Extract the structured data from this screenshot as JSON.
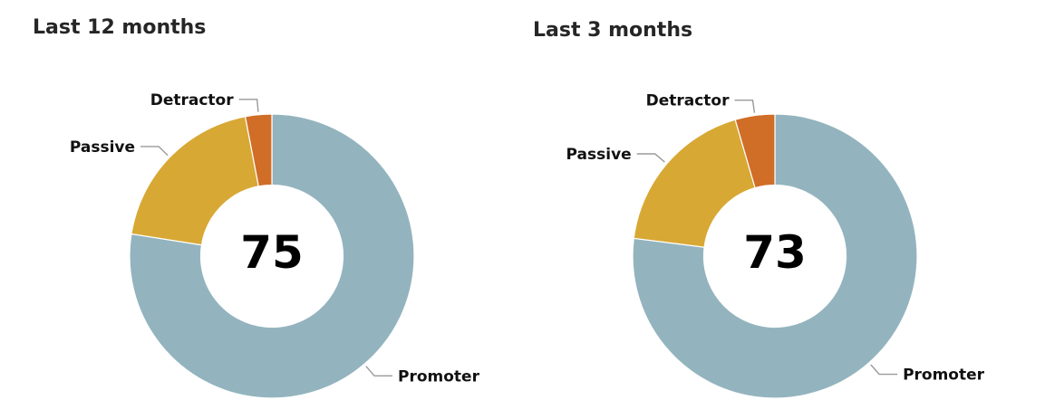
{
  "chart_data": [
    {
      "type": "pie",
      "title": "Last 12 months",
      "center_label": "75",
      "categories": [
        "Promoter",
        "Passive",
        "Detractor"
      ],
      "values": [
        77.5,
        19.5,
        3.0
      ],
      "colors": [
        "#93b4be",
        "#d8a834",
        "#d06d27"
      ],
      "hole_ratio": 0.5,
      "legend": "none"
    },
    {
      "type": "pie",
      "title": "Last 3 months",
      "center_label": "73",
      "categories": [
        "Promoter",
        "Passive",
        "Detractor"
      ],
      "values": [
        77.0,
        18.5,
        4.5
      ],
      "colors": [
        "#93b4be",
        "#d8a834",
        "#d06d27"
      ],
      "hole_ratio": 0.5,
      "legend": "none"
    }
  ]
}
